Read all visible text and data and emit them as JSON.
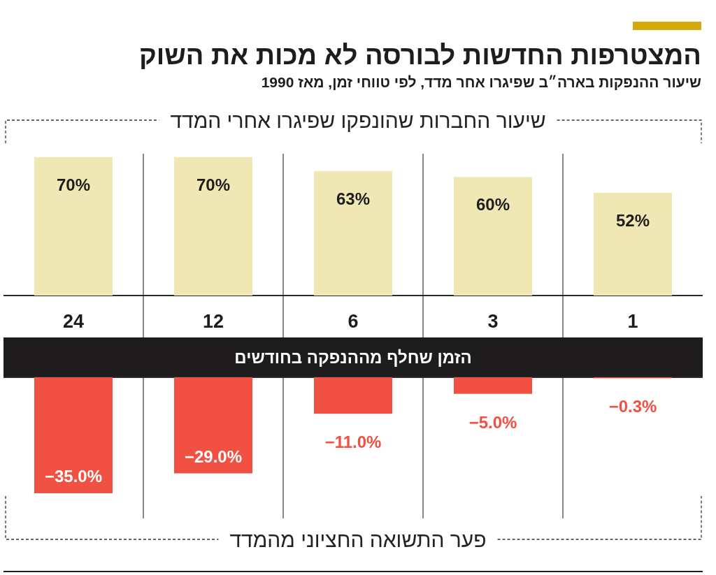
{
  "chart_data": [
    {
      "type": "other",
      "title": "המצטרפות החדשות לבורסה לא מכות את השוק",
      "subtitle": "שיעור ההנפקות בארה״ב שפיגרו אחר מדד, לפי טווחי זמן, מאז 1990"
    },
    {
      "type": "bar",
      "title": "שיעור החברות שהונפקו שפיגרו אחרי המדד",
      "xlabel": "הזמן שחלף מההנפקה בחודשים",
      "categories": [
        "24",
        "12",
        "6",
        "3",
        "1"
      ],
      "values": [
        70,
        70,
        63,
        60,
        52
      ],
      "value_labels": [
        "70%",
        "70%",
        "63%",
        "60%",
        "52%"
      ],
      "color": "#efe7b4",
      "tick_labels": "x"
    },
    {
      "type": "bar",
      "title": "פער התשואה החציוני מהמדד",
      "categories": [
        "24",
        "12",
        "6",
        "3",
        "1"
      ],
      "values": [
        -35.0,
        -29.0,
        -11.0,
        -5.0,
        -0.3
      ],
      "value_labels": [
        "−35.0%",
        "−29.0%",
        "−11.0%",
        "−5.0%",
        "−0.3%"
      ],
      "color": "#f05142",
      "tick_labels": false
    }
  ]
}
